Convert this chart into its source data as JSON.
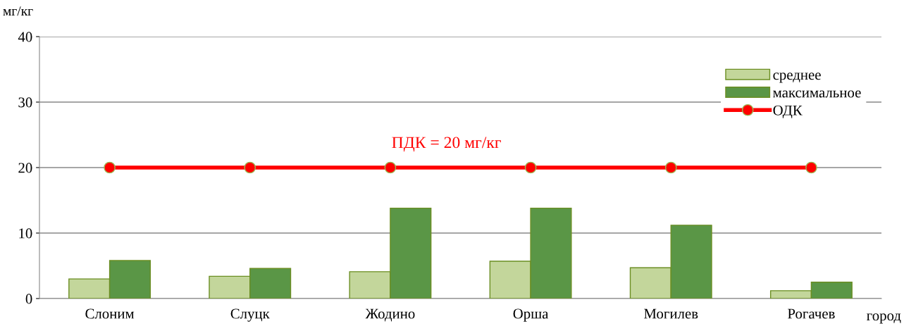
{
  "chart_data": {
    "type": "bar",
    "categories": [
      "Слоним",
      "Слуцк",
      "Жодино",
      "Орша",
      "Могилев",
      "Рогачев"
    ],
    "series": [
      {
        "name": "среднее",
        "color": "#c3d69b",
        "values": [
          3.0,
          3.4,
          4.1,
          5.7,
          4.7,
          1.2
        ]
      },
      {
        "name": "максимальное",
        "color": "#5a9646",
        "values": [
          5.8,
          4.6,
          13.8,
          13.8,
          11.2,
          2.5
        ]
      },
      {
        "name": "ОДК",
        "type": "line",
        "color": "#ff0000",
        "marker": "circle",
        "values": [
          20,
          20,
          20,
          20,
          20,
          20
        ]
      }
    ],
    "ylabel": "мг/кг",
    "xlabel": "город",
    "ylim": [
      0,
      40
    ],
    "yticks": [
      0,
      10,
      20,
      30,
      40
    ],
    "grid": "y",
    "legend": "top right",
    "annotations": [
      "ПДК = 20 мг/кг"
    ]
  }
}
